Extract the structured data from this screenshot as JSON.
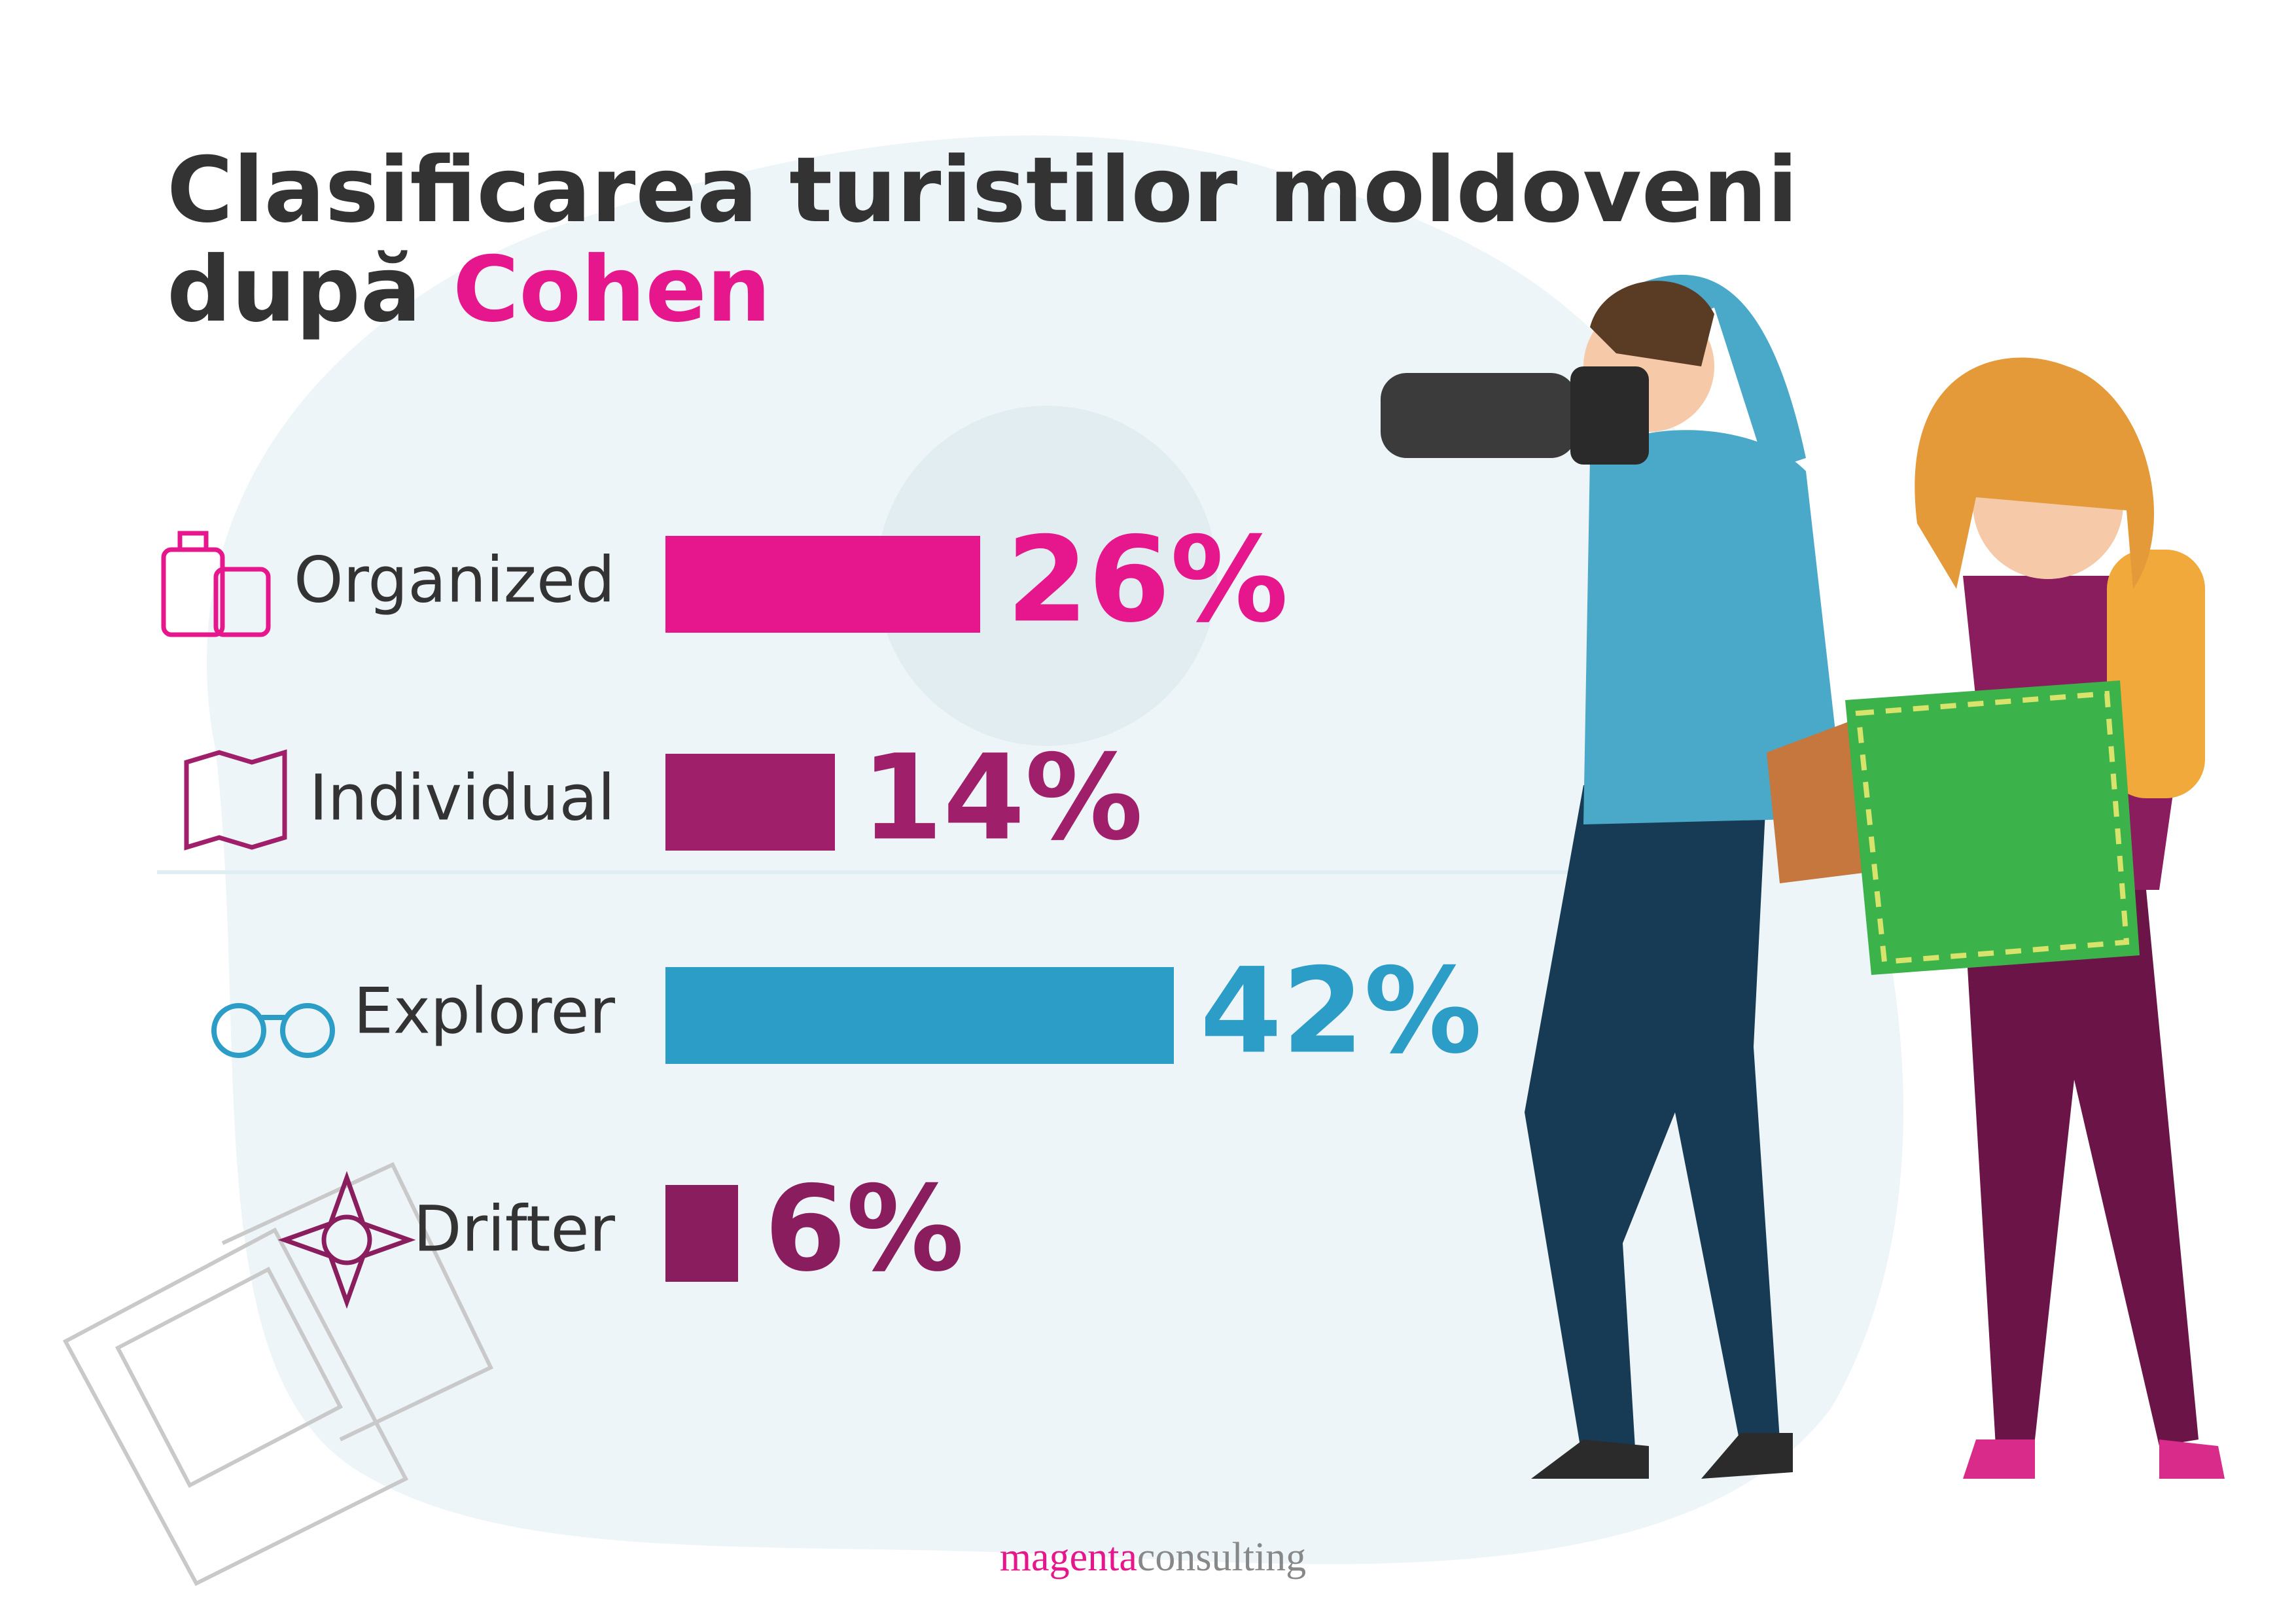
{
  "chart_data": {
    "type": "bar",
    "title": "Clasificarea turistilor moldoveni după",
    "title_highlight": "Cohen",
    "categories": [
      "Organized",
      "Individual",
      "Explorer",
      "Drifter"
    ],
    "values": [
      26,
      14,
      42,
      6
    ],
    "value_labels": [
      "26%",
      "14%",
      "42%",
      "6%"
    ],
    "colors": [
      "#e6178c",
      "#a01f6a",
      "#2b9dc6",
      "#8a1d5e"
    ]
  },
  "footer": {
    "brand": "magenta",
    "suffix": "consulting"
  }
}
